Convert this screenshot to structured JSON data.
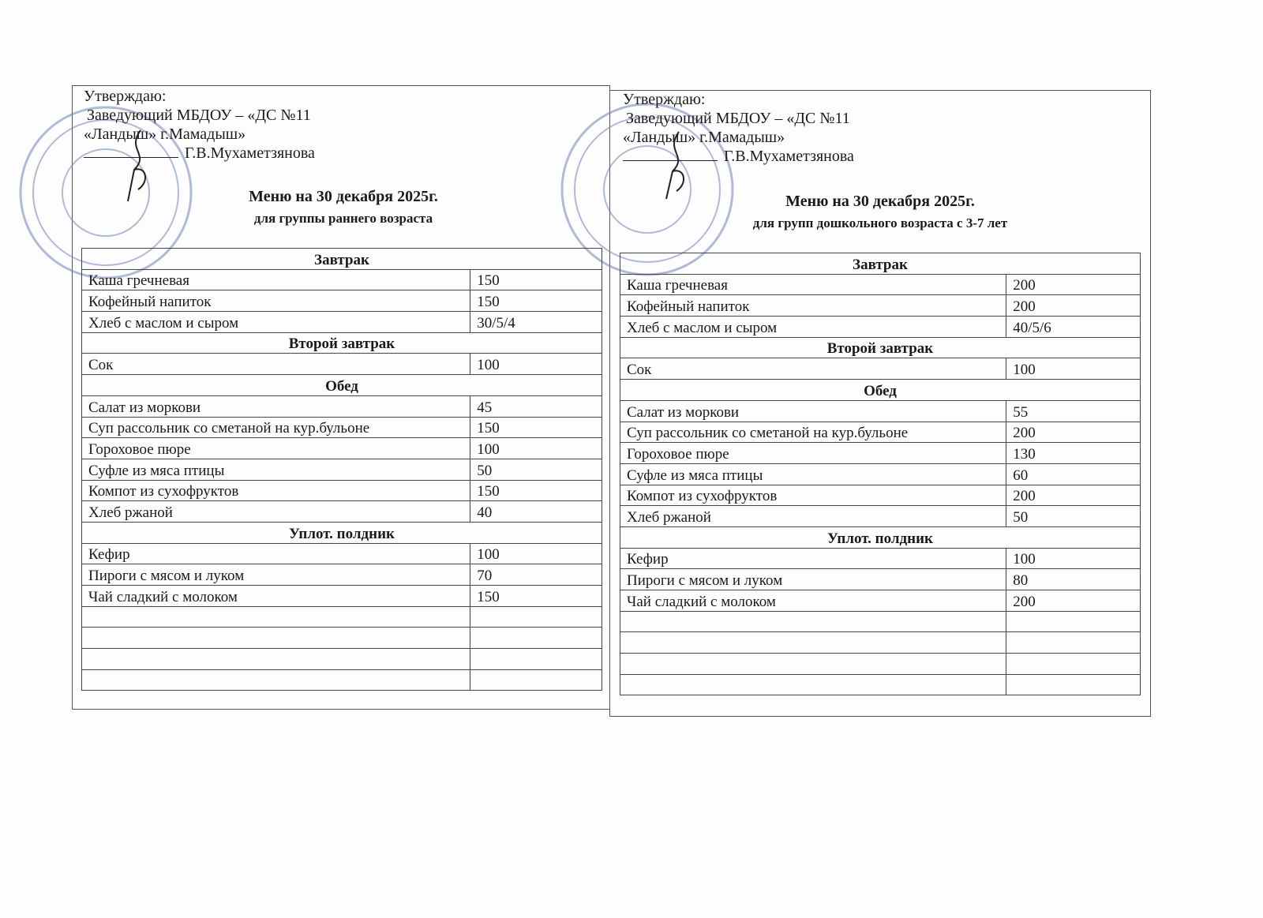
{
  "left": {
    "approve": [
      "Утверждаю:",
      "Заведующий МБДОУ – «ДС №11",
      "«Ландыш» г.Мамадыш»",
      "Г.В.Мухаметзянова"
    ],
    "title": "Меню на 30 декабря  2025г.",
    "subtitle": "для группы раннего возраста",
    "rows": [
      {
        "section": "Завтрак"
      },
      {
        "name": "Каша гречневая",
        "qty": "150"
      },
      {
        "name": "Кофейный напиток",
        "qty": "150"
      },
      {
        "name": "Хлеб с маслом и сыром",
        "qty": "30/5/4"
      },
      {
        "section": "Второй завтрак"
      },
      {
        "name": "Сок",
        "qty": "100"
      },
      {
        "section": "Обед"
      },
      {
        "name": "Салат из моркови",
        "qty": "45"
      },
      {
        "name": "Суп рассольник со сметаной на кур.бульоне",
        "qty": "150"
      },
      {
        "name": "Гороховое пюре",
        "qty": "100"
      },
      {
        "name": "Суфле из мяса птицы",
        "qty": "50"
      },
      {
        "name": "Компот из сухофруктов",
        "qty": "150"
      },
      {
        "name": "Хлеб ржаной",
        "qty": "40"
      },
      {
        "section": "Уплот. полдник"
      },
      {
        "name": "Кефир",
        "qty": "100"
      },
      {
        "name": "Пироги с мясом и луком",
        "qty": "70"
      },
      {
        "name": "Чай сладкий с молоком",
        "qty": "150"
      },
      {
        "name": "",
        "qty": ""
      },
      {
        "name": "",
        "qty": ""
      },
      {
        "name": "",
        "qty": ""
      },
      {
        "name": "",
        "qty": ""
      }
    ]
  },
  "right": {
    "approve": [
      "Утверждаю:",
      "Заведующий МБДОУ – «ДС №11",
      "«Ландыш» г.Мамадыш»",
      "Г.В.Мухаметзянова"
    ],
    "title": "Меню на 30 декабря 2025г.",
    "subtitle": "для групп дошкольного возраста с 3-7 лет",
    "rows": [
      {
        "section": "Завтрак"
      },
      {
        "name": "Каша гречневая",
        "qty": "200"
      },
      {
        "name": "Кофейный напиток",
        "qty": "200"
      },
      {
        "name": "Хлеб с маслом и сыром",
        "qty": "40/5/6"
      },
      {
        "section": "Второй завтрак"
      },
      {
        "name": "Сок",
        "qty": "100"
      },
      {
        "section": "Обед"
      },
      {
        "name": "Салат из моркови",
        "qty": "55"
      },
      {
        "name": "Суп рассольник со сметаной на кур.бульоне",
        "qty": "200"
      },
      {
        "name": "Гороховое пюре",
        "qty": "130"
      },
      {
        "name": "Суфле из мяса птицы",
        "qty": "60"
      },
      {
        "name": "Компот из сухофруктов",
        "qty": "200"
      },
      {
        "name": "Хлеб ржаной",
        "qty": "50"
      },
      {
        "section": "Уплот. полдник"
      },
      {
        "name": "Кефир",
        "qty": "100"
      },
      {
        "name": "Пироги с мясом и луком",
        "qty": "80"
      },
      {
        "name": "Чай сладкий с молоком",
        "qty": "200"
      },
      {
        "name": "",
        "qty": ""
      },
      {
        "name": "",
        "qty": ""
      },
      {
        "name": "",
        "qty": ""
      },
      {
        "name": "",
        "qty": ""
      }
    ]
  },
  "colors": {
    "stamp": "#6f86b8",
    "ink": "#1a1a1a"
  }
}
